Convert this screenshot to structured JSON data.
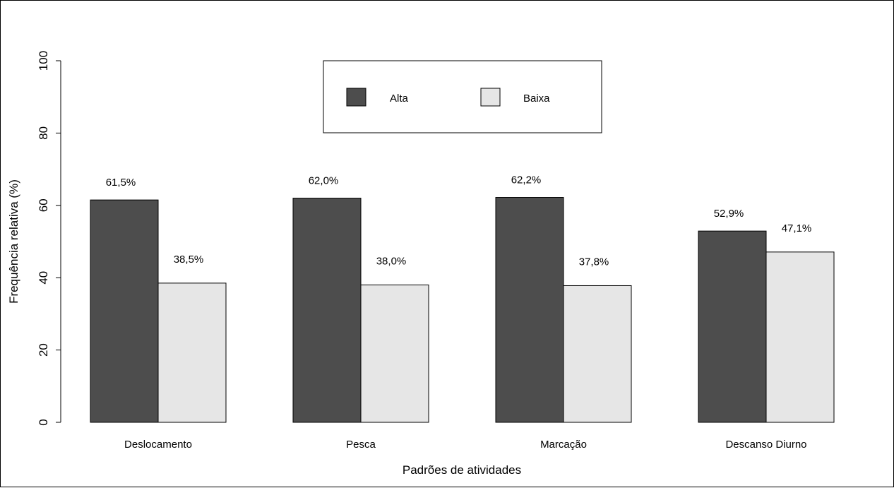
{
  "chart_data": {
    "type": "bar",
    "xlabel": "Padrões de atividades",
    "ylabel": "Frequência relativa (%)",
    "ylim": [
      0,
      100
    ],
    "yticks": [
      "0",
      "20",
      "40",
      "60",
      "80",
      "100"
    ],
    "categories": [
      "Deslocamento",
      "Pesca",
      "Marcação",
      "Descanso Diurno"
    ],
    "series": [
      {
        "name": "Alta",
        "color": "#4d4d4d",
        "values": [
          61.5,
          62.0,
          62.2,
          52.9
        ],
        "labels": [
          "61,5%",
          "62,0%",
          "62,2%",
          "52,9%"
        ]
      },
      {
        "name": "Baixa",
        "color": "#e6e6e6",
        "values": [
          38.5,
          38.0,
          37.8,
          47.1
        ],
        "labels": [
          "38,5%",
          "38,0%",
          "37,8%",
          "47,1%"
        ]
      }
    ],
    "legend_position": "top-center",
    "grid": false
  }
}
